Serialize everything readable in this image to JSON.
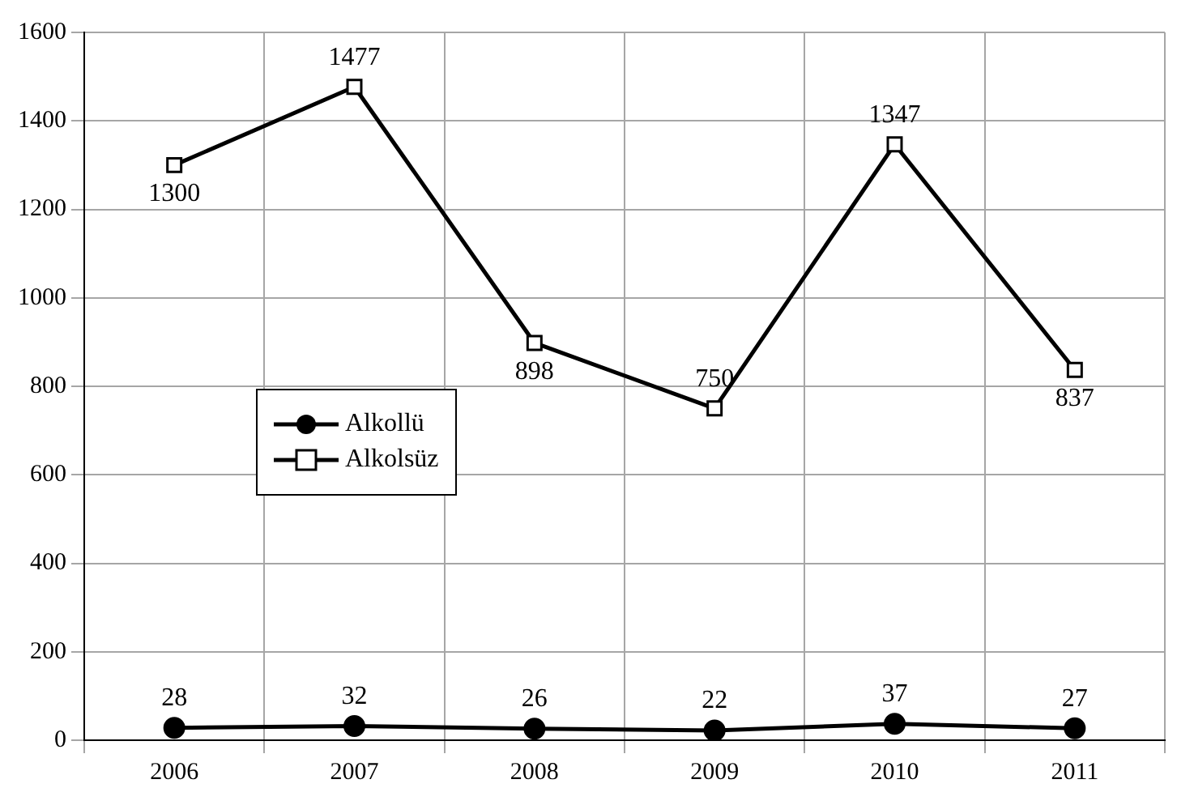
{
  "chart_data": {
    "type": "line",
    "categories": [
      "2006",
      "2007",
      "2008",
      "2009",
      "2010",
      "2011"
    ],
    "series": [
      {
        "name": "Alkollü",
        "color": "#000000",
        "values": [
          28,
          32,
          26,
          22,
          37,
          27
        ],
        "marker": "circle"
      },
      {
        "name": "Alkolsüz",
        "color": "#000000",
        "values": [
          1300,
          1477,
          898,
          750,
          1347,
          837
        ],
        "marker": "square"
      }
    ],
    "ylim": [
      0,
      1600
    ],
    "yticks": [
      0,
      200,
      400,
      600,
      800,
      1000,
      1200,
      1400,
      1600
    ],
    "grid": true,
    "legend": "left",
    "data_labels": true,
    "line_style": "solid"
  }
}
